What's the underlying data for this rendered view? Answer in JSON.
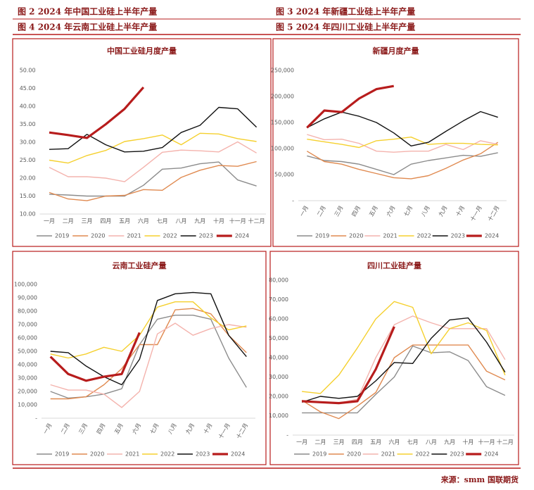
{
  "headers": [
    "图 2  2024 年中国工业硅上半年产量",
    "图 3  2024 年新疆工业硅上半年产量",
    "图 4  2024 年云南工业硅上半年产量",
    "图 5  2024 年四川工业硅上半年产量"
  ],
  "source": "来源：smm    国联期货",
  "chart_data": [
    {
      "type": "line",
      "title": "中国工业硅月度产量",
      "categories": [
        "一月",
        "二月",
        "三月",
        "四月",
        "五月",
        "六月",
        "七月",
        "八月",
        "九月",
        "十月",
        "十一月",
        "十二月"
      ],
      "ylim": [
        10,
        50
      ],
      "yticks": [
        {
          "value": 10,
          "label": "10.00"
        },
        {
          "value": 15,
          "label": "15.00"
        },
        {
          "value": 20,
          "label": "20.00"
        },
        {
          "value": 25,
          "label": "25.00"
        },
        {
          "value": 30,
          "label": "30.00"
        },
        {
          "value": 35,
          "label": "35.00"
        },
        {
          "value": 40,
          "label": "40.00"
        },
        {
          "value": 45,
          "label": "45.00"
        },
        {
          "value": 50,
          "label": "50.00"
        }
      ],
      "grid": false,
      "series": [
        {
          "name": "2019",
          "color": "#8c8c8c",
          "values": [
            15.5,
            15.3,
            15,
            15,
            15,
            18,
            22.5,
            22.8,
            24,
            24.5,
            19.5,
            17.8
          ]
        },
        {
          "name": "2020",
          "color": "#e08a50",
          "values": [
            16,
            14.2,
            13.7,
            15,
            15.2,
            16.8,
            16.6,
            20.2,
            22.2,
            23.5,
            23.3,
            24.6
          ]
        },
        {
          "name": "2021",
          "color": "#f4b3ad",
          "values": [
            23,
            20.4,
            20.4,
            20,
            19,
            23,
            27.2,
            27.8,
            27.6,
            27.3,
            30.1,
            27
          ]
        },
        {
          "name": "2022",
          "color": "#f5d02e",
          "values": [
            25,
            24.2,
            26.3,
            27.7,
            30.2,
            31,
            32,
            29.3,
            32.5,
            32.3,
            31,
            30.2
          ]
        },
        {
          "name": "2023",
          "color": "#111111",
          "values": [
            28,
            28.2,
            32.2,
            29.3,
            27.3,
            27.5,
            28.5,
            32.7,
            34.7,
            39.7,
            39.3,
            34.2
          ]
        },
        {
          "name": "2024",
          "color": "#b71c1c",
          "values": [
            32.7,
            32,
            31.2,
            35,
            39.3,
            45.3,
            null,
            null,
            null,
            null,
            null,
            null
          ]
        }
      ]
    },
    {
      "type": "line",
      "title": "新疆月度产量",
      "categories": [
        "一月",
        "二月",
        "三月",
        "四月",
        "五月",
        "六月",
        "七月",
        "八月",
        "九月",
        "十月",
        "十一月",
        "十二月"
      ],
      "ylim": [
        0,
        250000
      ],
      "yticks": [
        {
          "value": 0,
          "label": "-"
        },
        {
          "value": 50000,
          "label": "50,000"
        },
        {
          "value": 100000,
          "label": "100,000"
        },
        {
          "value": 150000,
          "label": "150,000"
        },
        {
          "value": 200000,
          "label": "200,000"
        },
        {
          "value": 250000,
          "label": "250,000"
        }
      ],
      "grid": false,
      "series": [
        {
          "name": "2019",
          "color": "#8c8c8c",
          "values": [
            86000,
            77000,
            75000,
            70000,
            60000,
            50000,
            70000,
            77000,
            82000,
            87000,
            85000,
            92000
          ]
        },
        {
          "name": "2020",
          "color": "#e08a50",
          "values": [
            95000,
            75000,
            70000,
            60000,
            52000,
            44000,
            42000,
            48000,
            62000,
            78000,
            90000,
            112000
          ]
        },
        {
          "name": "2021",
          "color": "#f4b3ad",
          "values": [
            127000,
            117000,
            118000,
            110000,
            95000,
            93000,
            95000,
            95000,
            108000,
            98000,
            115000,
            108000
          ]
        },
        {
          "name": "2022",
          "color": "#f5d02e",
          "values": [
            118000,
            113000,
            108000,
            102000,
            115000,
            118000,
            122000,
            108000,
            110000,
            110000,
            108000,
            107000
          ]
        },
        {
          "name": "2023",
          "color": "#111111",
          "values": [
            140000,
            157000,
            170000,
            162000,
            150000,
            130000,
            105000,
            112000,
            133000,
            153000,
            171000,
            160000
          ]
        },
        {
          "name": "2024",
          "color": "#b71c1c",
          "values": [
            140000,
            173000,
            170000,
            196000,
            214000,
            220000,
            null,
            null,
            null,
            null,
            null,
            null
          ]
        }
      ]
    },
    {
      "type": "line",
      "title": "云南工业硅产量",
      "categories": [
        "一月",
        "二月",
        "三月",
        "四月",
        "五月",
        "六月",
        "七月",
        "八月",
        "九月",
        "十月",
        "十一月",
        "十二月"
      ],
      "ylim": [
        0,
        100000
      ],
      "yticks": [
        {
          "value": 0,
          "label": "-"
        },
        {
          "value": 10000,
          "label": "10,000"
        },
        {
          "value": 20000,
          "label": "20,000"
        },
        {
          "value": 30000,
          "label": "30,000"
        },
        {
          "value": 40000,
          "label": "40,000"
        },
        {
          "value": 50000,
          "label": "50,000"
        },
        {
          "value": 60000,
          "label": "60,000"
        },
        {
          "value": 70000,
          "label": "70,000"
        },
        {
          "value": 80000,
          "label": "80,000"
        },
        {
          "value": 90000,
          "label": "90,000"
        },
        {
          "value": 100000,
          "label": "100,000"
        }
      ],
      "grid": false,
      "series": [
        {
          "name": "2019",
          "color": "#8c8c8c",
          "values": [
            20000,
            15000,
            16000,
            18000,
            22000,
            55000,
            74000,
            77000,
            77000,
            74000,
            45000,
            23000
          ]
        },
        {
          "name": "2020",
          "color": "#e08a50",
          "values": [
            14500,
            14500,
            16000,
            25000,
            37000,
            55000,
            55000,
            81000,
            82000,
            78000,
            62000,
            49000
          ]
        },
        {
          "name": "2021",
          "color": "#f4b3ad",
          "values": [
            25000,
            21000,
            21000,
            18000,
            8000,
            20000,
            63000,
            71000,
            62000,
            67000,
            70000,
            68000
          ]
        },
        {
          "name": "2022",
          "color": "#f5d02e",
          "values": [
            48000,
            45000,
            48000,
            53000,
            50000,
            62000,
            83000,
            87000,
            87000,
            75000,
            66000,
            69000
          ]
        },
        {
          "name": "2023",
          "color": "#111111",
          "values": [
            50000,
            49000,
            39000,
            31000,
            25000,
            44000,
            88000,
            93000,
            94000,
            93000,
            62000,
            46000
          ]
        },
        {
          "name": "2024",
          "color": "#b71c1c",
          "values": [
            46000,
            33000,
            28000,
            31000,
            33000,
            64000,
            null,
            null,
            null,
            null,
            null,
            null
          ]
        }
      ]
    },
    {
      "type": "line",
      "title": "四川工业硅产量",
      "categories": [
        "一月",
        "二月",
        "三月",
        "四月",
        "五月",
        "六月",
        "七月",
        "八月",
        "九月",
        "十月",
        "十一月",
        "十二月"
      ],
      "ylim": [
        0,
        80000
      ],
      "yticks": [
        {
          "value": 0,
          "label": "-"
        },
        {
          "value": 10000,
          "label": "10,000"
        },
        {
          "value": 20000,
          "label": "20,000"
        },
        {
          "value": 30000,
          "label": "30,000"
        },
        {
          "value": 40000,
          "label": "40,000"
        },
        {
          "value": 50000,
          "label": "50,000"
        },
        {
          "value": 60000,
          "label": "60,000"
        },
        {
          "value": 70000,
          "label": "70,000"
        },
        {
          "value": 80000,
          "label": "80,000"
        }
      ],
      "grid": false,
      "series": [
        {
          "name": "2019",
          "color": "#8c8c8c",
          "values": [
            11500,
            11500,
            11500,
            11500,
            21000,
            30000,
            46000,
            42500,
            43000,
            38500,
            25000,
            20500
          ]
        },
        {
          "name": "2020",
          "color": "#e08a50",
          "values": [
            18000,
            12000,
            8500,
            15000,
            22000,
            40000,
            46500,
            46500,
            46500,
            46500,
            33000,
            28500
          ]
        },
        {
          "name": "2021",
          "color": "#f4b3ad",
          "values": [
            17500,
            17000,
            16500,
            18500,
            40000,
            57000,
            61500,
            58000,
            55000,
            55000,
            55000,
            39000
          ]
        },
        {
          "name": "2022",
          "color": "#f5d02e",
          "values": [
            22500,
            21500,
            31000,
            45000,
            60000,
            69000,
            66000,
            42000,
            55000,
            58000,
            54000,
            31000
          ]
        },
        {
          "name": "2023",
          "color": "#111111",
          "values": [
            17000,
            20000,
            19000,
            20000,
            28000,
            37500,
            37000,
            50000,
            59500,
            60500,
            48000,
            32500
          ]
        },
        {
          "name": "2024",
          "color": "#b71c1c",
          "values": [
            17500,
            17000,
            16500,
            17500,
            34000,
            56000,
            null,
            null,
            null,
            null,
            null,
            null
          ]
        }
      ]
    }
  ]
}
